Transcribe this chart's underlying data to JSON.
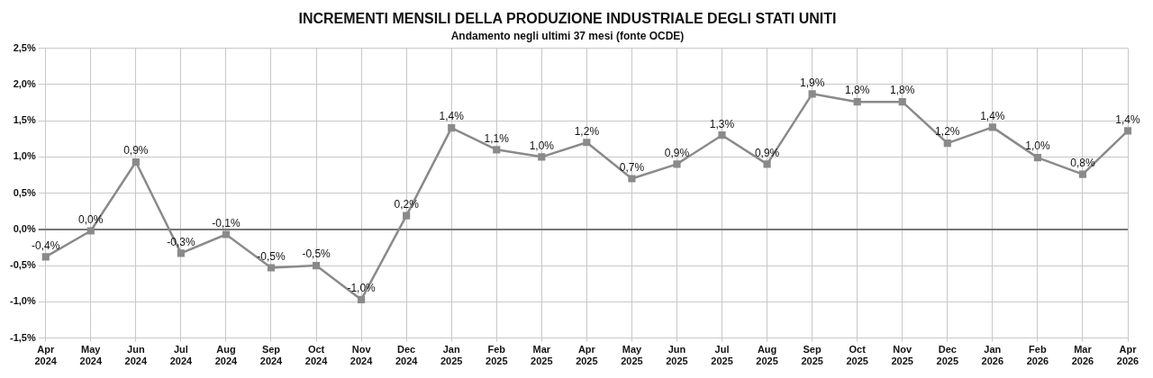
{
  "chart_data": {
    "type": "line",
    "title": "INCREMENTI MENSILI DELLA PRODUZIONE INDUSTRIALE DEGLI STATI UNITI",
    "subtitle": "Andamento negli ultimi 37 mesi (fonte OCDE)",
    "categories": [
      "Apr 2024",
      "May 2024",
      "Jun 2024",
      "Jul 2024",
      "Aug 2024",
      "Sep 2024",
      "Oct 2024",
      "Nov 2024",
      "Dec 2024",
      "Jan 2025",
      "Feb 2025",
      "Mar 2025",
      "Apr 2025",
      "May 2025",
      "Jun 2025",
      "Jul 2025",
      "Aug 2025",
      "Sep 2025",
      "Oct 2025",
      "Nov 2025",
      "Dec 2025",
      "Jan 2026",
      "Feb 2026",
      "Mar 2026",
      "Apr 2026"
    ],
    "series": [
      {
        "color": "#8a8a8a",
        "values": [
          -0.38,
          -0.02,
          0.93,
          -0.33,
          -0.07,
          -0.53,
          -0.5,
          -0.97,
          0.19,
          1.4,
          1.1,
          1.0,
          1.2,
          0.7,
          0.9,
          1.3,
          0.9,
          1.87,
          1.76,
          1.76,
          1.19,
          1.41,
          0.99,
          0.76,
          1.36
        ],
        "value_labels": [
          "-0,4%",
          "0,0%",
          "0,9%",
          "-0,3%",
          "-0,1%",
          "-0,5%",
          "-0,5%",
          "-1,0%",
          "0,2%",
          "1,4%",
          "1,1%",
          "1,0%",
          "1,2%",
          "0,7%",
          "0,9%",
          "1,3%",
          "0,9%",
          "1,9%",
          "1,8%",
          "1,8%",
          "1,2%",
          "1,4%",
          "1,0%",
          "0,8%",
          "1,4%"
        ]
      }
    ],
    "ylim": [
      -1.5,
      2.5
    ],
    "yticks": [
      {
        "value": -1.5,
        "label": "-1,5%"
      },
      {
        "value": -1,
        "label": "-1,0%"
      },
      {
        "value": -0.5,
        "label": "-0,5%"
      },
      {
        "value": 0,
        "label": "0,0%"
      },
      {
        "value": 0.5,
        "label": "0,5%"
      },
      {
        "value": 1,
        "label": "1,0%"
      },
      {
        "value": 1.5,
        "label": "1,5%"
      },
      {
        "value": 2,
        "label": "2,0%"
      },
      {
        "value": 2.5,
        "label": "2,5%"
      }
    ],
    "grid": true,
    "legend": false,
    "marker": "square",
    "line_style": "solid"
  }
}
